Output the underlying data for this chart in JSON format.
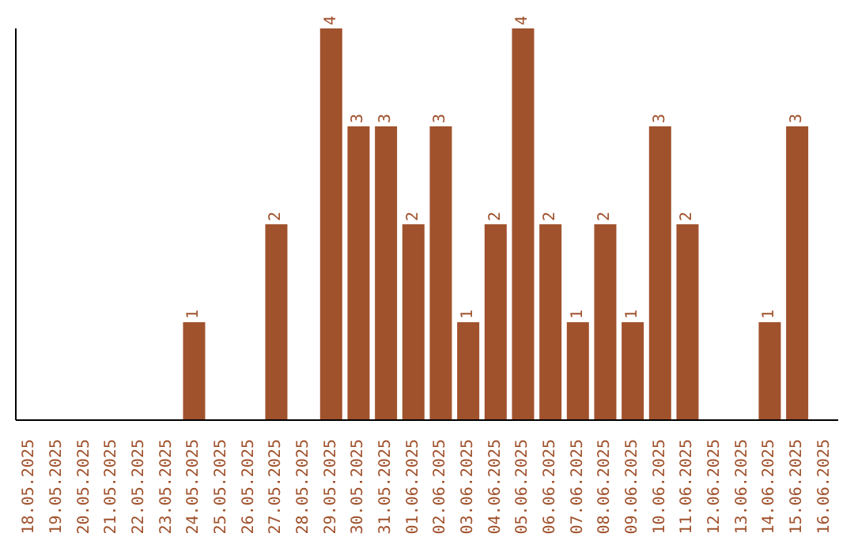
{
  "chart_data": {
    "type": "bar",
    "categories": [
      "18.05.2025",
      "19.05.2025",
      "20.05.2025",
      "21.05.2025",
      "22.05.2025",
      "23.05.2025",
      "24.05.2025",
      "25.05.2025",
      "26.05.2025",
      "27.05.2025",
      "28.05.2025",
      "29.05.2025",
      "30.05.2025",
      "31.05.2025",
      "01.06.2025",
      "02.06.2025",
      "03.06.2025",
      "04.06.2025",
      "05.06.2025",
      "06.06.2025",
      "07.06.2025",
      "08.06.2025",
      "09.06.2025",
      "10.06.2025",
      "11.06.2025",
      "12.06.2025",
      "13.06.2025",
      "14.06.2025",
      "15.06.2025",
      "16.06.2025"
    ],
    "values": [
      0,
      0,
      0,
      0,
      0,
      0,
      1,
      0,
      0,
      2,
      0,
      4,
      3,
      3,
      2,
      3,
      1,
      2,
      4,
      2,
      1,
      2,
      1,
      3,
      2,
      0,
      0,
      1,
      3,
      0
    ],
    "value_labels": [
      null,
      null,
      null,
      null,
      null,
      null,
      "1",
      null,
      null,
      "2",
      null,
      "4",
      "3",
      "3",
      "2",
      "3",
      "1",
      "2",
      "4",
      "2",
      "1",
      "2",
      "1",
      "3",
      "2",
      null,
      null,
      "1",
      "3",
      null
    ],
    "color": "#a0522d",
    "ylim": [
      0,
      4
    ],
    "tick_labels": "x"
  }
}
